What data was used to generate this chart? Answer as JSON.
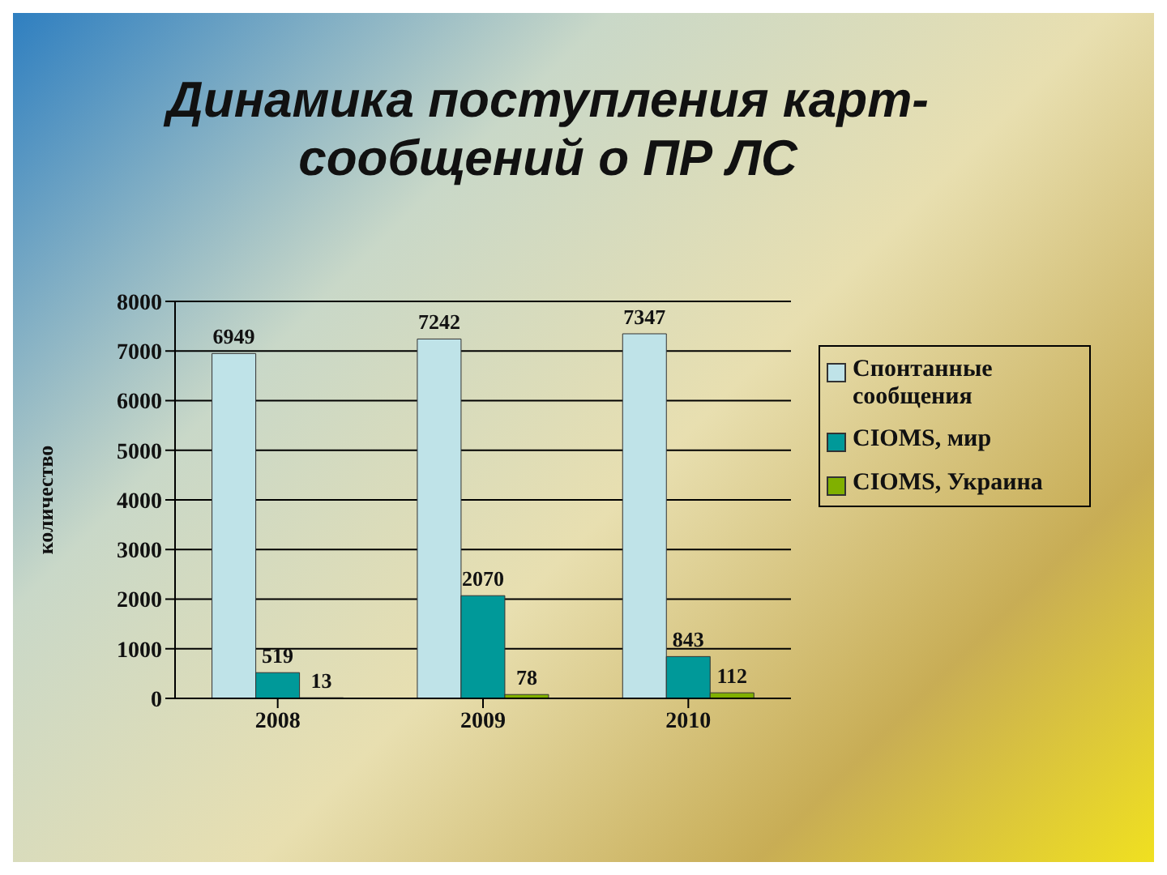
{
  "chart_data": {
    "type": "bar",
    "title": "Динамика поступления карт-сообщений о ПР ЛС",
    "ylabel": "количество",
    "categories": [
      "2008",
      "2009",
      "2010"
    ],
    "series": [
      {
        "name": "Спонтанные сообщения",
        "color": "#bfe3e8",
        "values": [
          6949,
          7242,
          7347
        ]
      },
      {
        "name": "CIOMS, мир",
        "color": "#009999",
        "values": [
          519,
          2070,
          843
        ]
      },
      {
        "name": "CIOMS, Украина",
        "color": "#80b000",
        "values": [
          13,
          78,
          112
        ]
      }
    ],
    "ylim": [
      0,
      8000
    ],
    "yticks": [
      0,
      1000,
      2000,
      3000,
      4000,
      5000,
      6000,
      7000,
      8000
    ],
    "grid": "y",
    "legend": "right",
    "data_labels": true
  }
}
